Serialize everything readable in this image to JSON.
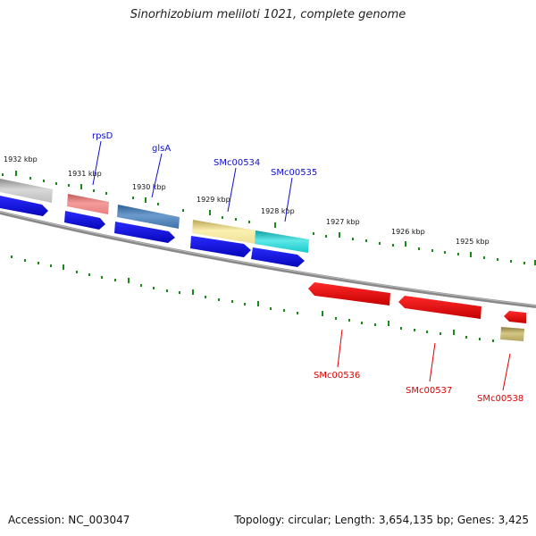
{
  "title": "Sinorhizobium meliloti 1021, complete genome",
  "footer": {
    "accession": "Accession: NC_003047",
    "summary": "Topology: circular; Length: 3,654,135 bp; Genes: 3,425"
  },
  "ruler": [
    "1932 kbp",
    "1931 kbp",
    "1930 kbp",
    "1929 kbp",
    "1928 kbp",
    "1927 kbp",
    "1926 kbp",
    "1925 kbp"
  ],
  "forward_genes": [
    "rpsD",
    "glsA",
    "SMc00534",
    "SMc00535"
  ],
  "reverse_genes": [
    "SMc00536",
    "SMc00537",
    "SMc00538"
  ],
  "colors": {
    "forward_label": "#1010d0",
    "reverse_label": "#e00000",
    "cds_forward": "#1414e6",
    "cds_reverse": "#ee0000",
    "ticks": "#1a8a1a",
    "backbone": "#888888",
    "rpsD": "#f08a8a",
    "glsA": "#4a7fb8",
    "SMc00534": "#f2e29a",
    "SMc00535": "#22d0d0",
    "SMc00538": "#b8aa62"
  }
}
